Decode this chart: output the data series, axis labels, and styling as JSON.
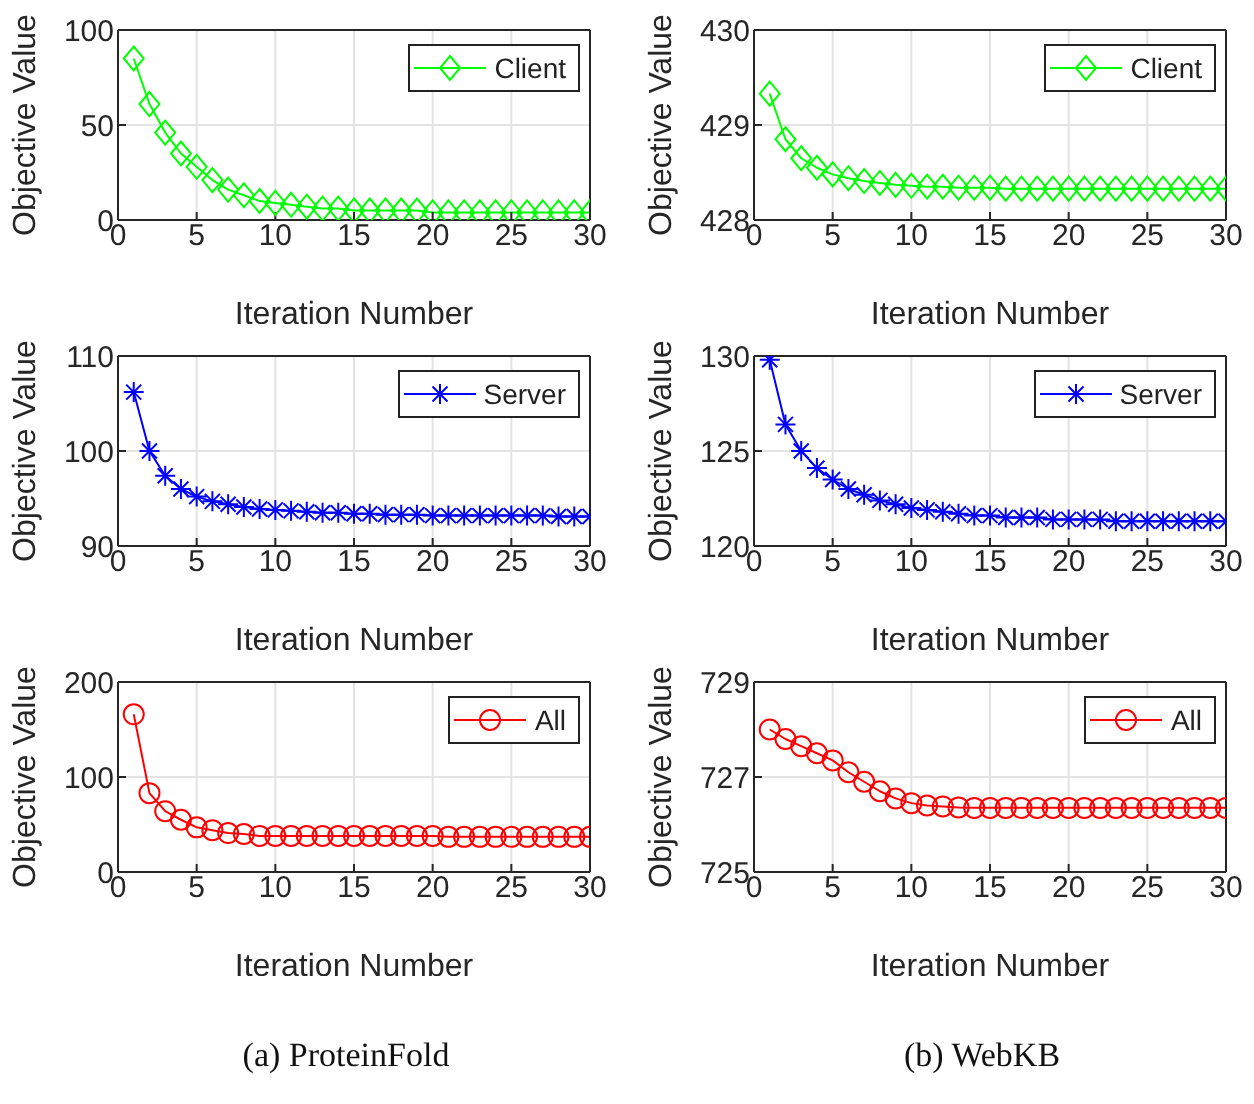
{
  "chart_data": [
    {
      "type": "line",
      "xlabel": "Iteration Number",
      "ylabel": "Objective Value",
      "xlim": [
        0,
        30
      ],
      "xticks": [
        0,
        5,
        10,
        15,
        20,
        25,
        30
      ],
      "ylim": [
        0,
        100
      ],
      "yticks": [
        0,
        50,
        100
      ],
      "grid": true,
      "legend": "top right",
      "marker": "diamond",
      "x": [
        1,
        2,
        3,
        4,
        5,
        6,
        7,
        8,
        9,
        10,
        11,
        12,
        13,
        14,
        15,
        16,
        17,
        18,
        19,
        20,
        21,
        22,
        23,
        24,
        25,
        26,
        27,
        28,
        29,
        30
      ],
      "series": [
        {
          "name": "Client",
          "color": "#00ff00",
          "values": [
            85,
            61,
            46,
            35,
            28,
            21,
            16,
            13,
            10,
            9,
            8,
            7,
            6,
            6,
            5,
            5,
            5,
            5,
            5,
            4,
            4,
            4,
            4,
            4,
            4,
            4,
            4,
            4,
            4,
            4
          ]
        }
      ]
    },
    {
      "type": "line",
      "xlabel": "Iteration Number",
      "ylabel": "Objective Value",
      "xlim": [
        0,
        30
      ],
      "xticks": [
        0,
        5,
        10,
        15,
        20,
        25,
        30
      ],
      "ylim": [
        428,
        430
      ],
      "yticks": [
        428,
        429,
        430
      ],
      "grid": true,
      "legend": "top right",
      "marker": "diamond",
      "x": [
        1,
        2,
        3,
        4,
        5,
        6,
        7,
        8,
        9,
        10,
        11,
        12,
        13,
        14,
        15,
        16,
        17,
        18,
        19,
        20,
        21,
        22,
        23,
        24,
        25,
        26,
        27,
        28,
        29,
        30
      ],
      "series": [
        {
          "name": "Client",
          "color": "#00ff00",
          "values": [
            429.33,
            428.85,
            428.65,
            428.55,
            428.48,
            428.44,
            428.41,
            428.39,
            428.37,
            428.36,
            428.35,
            428.35,
            428.34,
            428.34,
            428.34,
            428.33,
            428.33,
            428.33,
            428.33,
            428.33,
            428.33,
            428.33,
            428.33,
            428.33,
            428.33,
            428.33,
            428.33,
            428.33,
            428.33,
            428.33
          ]
        }
      ]
    },
    {
      "type": "line",
      "xlabel": "Iteration Number",
      "ylabel": "Objective Value",
      "xlim": [
        0,
        30
      ],
      "xticks": [
        0,
        5,
        10,
        15,
        20,
        25,
        30
      ],
      "ylim": [
        90,
        110
      ],
      "yticks": [
        90,
        100,
        110
      ],
      "grid": true,
      "legend": "top right",
      "marker": "cross",
      "x": [
        1,
        2,
        3,
        4,
        5,
        6,
        7,
        8,
        9,
        10,
        11,
        12,
        13,
        14,
        15,
        16,
        17,
        18,
        19,
        20,
        21,
        22,
        23,
        24,
        25,
        26,
        27,
        28,
        29,
        30
      ],
      "series": [
        {
          "name": "Server",
          "color": "#0000ff",
          "values": [
            106.2,
            100,
            97.4,
            96,
            95.2,
            94.7,
            94.4,
            94.1,
            93.9,
            93.8,
            93.7,
            93.6,
            93.5,
            93.5,
            93.4,
            93.4,
            93.3,
            93.3,
            93.3,
            93.2,
            93.2,
            93.2,
            93.2,
            93.2,
            93.2,
            93.2,
            93.2,
            93.1,
            93.1,
            93.1
          ]
        }
      ]
    },
    {
      "type": "line",
      "xlabel": "Iteration Number",
      "ylabel": "Objective Value",
      "xlim": [
        0,
        30
      ],
      "xticks": [
        0,
        5,
        10,
        15,
        20,
        25,
        30
      ],
      "ylim": [
        120,
        130
      ],
      "yticks": [
        120,
        125,
        130
      ],
      "grid": true,
      "legend": "top right",
      "marker": "cross",
      "x": [
        1,
        2,
        3,
        4,
        5,
        6,
        7,
        8,
        9,
        10,
        11,
        12,
        13,
        14,
        15,
        16,
        17,
        18,
        19,
        20,
        21,
        22,
        23,
        24,
        25,
        26,
        27,
        28,
        29,
        30
      ],
      "series": [
        {
          "name": "Server",
          "color": "#0000ff",
          "values": [
            129.8,
            126.4,
            125,
            124.1,
            123.5,
            123,
            122.7,
            122.4,
            122.2,
            122,
            121.9,
            121.8,
            121.7,
            121.6,
            121.6,
            121.5,
            121.5,
            121.5,
            121.4,
            121.4,
            121.4,
            121.4,
            121.3,
            121.3,
            121.3,
            121.3,
            121.3,
            121.3,
            121.3,
            121.3
          ]
        }
      ]
    },
    {
      "type": "line",
      "xlabel": "Iteration Number",
      "ylabel": "Objective Value",
      "xlim": [
        0,
        30
      ],
      "xticks": [
        0,
        5,
        10,
        15,
        20,
        25,
        30
      ],
      "ylim": [
        0,
        200
      ],
      "yticks": [
        0,
        100,
        200
      ],
      "grid": true,
      "legend": "top right",
      "marker": "circle",
      "annotations": [
        "(a) ProteinFold"
      ],
      "x": [
        1,
        2,
        3,
        4,
        5,
        6,
        7,
        8,
        9,
        10,
        11,
        12,
        13,
        14,
        15,
        16,
        17,
        18,
        19,
        20,
        21,
        22,
        23,
        24,
        25,
        26,
        27,
        28,
        29,
        30
      ],
      "series": [
        {
          "name": "All",
          "color": "#ff0000",
          "values": [
            166,
            83,
            64,
            55,
            47,
            44,
            41,
            40,
            38,
            38,
            38,
            38,
            38,
            38,
            38,
            38,
            38,
            38,
            38,
            38,
            37,
            37,
            37,
            37,
            37,
            37,
            37,
            37,
            37,
            37
          ]
        }
      ]
    },
    {
      "type": "line",
      "xlabel": "Iteration Number",
      "ylabel": "Objective Value",
      "xlim": [
        0,
        30
      ],
      "xticks": [
        0,
        5,
        10,
        15,
        20,
        25,
        30
      ],
      "ylim": [
        725,
        729
      ],
      "yticks": [
        725,
        727,
        729
      ],
      "grid": true,
      "legend": "top right",
      "marker": "circle",
      "annotations": [
        "(b) WebKB"
      ],
      "x": [
        1,
        2,
        3,
        4,
        5,
        6,
        7,
        8,
        9,
        10,
        11,
        12,
        13,
        14,
        15,
        16,
        17,
        18,
        19,
        20,
        21,
        22,
        23,
        24,
        25,
        26,
        27,
        28,
        29,
        30
      ],
      "series": [
        {
          "name": "All",
          "color": "#ff0000",
          "values": [
            728,
            727.8,
            727.65,
            727.5,
            727.35,
            727.1,
            726.9,
            726.7,
            726.55,
            726.45,
            726.4,
            726.38,
            726.36,
            726.35,
            726.35,
            726.35,
            726.35,
            726.35,
            726.35,
            726.35,
            726.35,
            726.35,
            726.35,
            726.35,
            726.35,
            726.35,
            726.35,
            726.35,
            726.35,
            726.35
          ]
        }
      ]
    }
  ]
}
